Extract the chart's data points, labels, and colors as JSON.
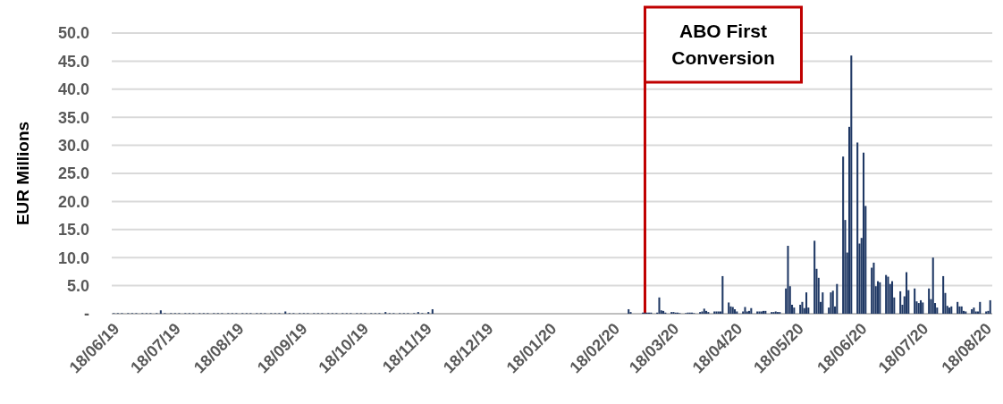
{
  "chart_data": {
    "type": "bar",
    "ylabel": "EUR Millions",
    "xlim": [
      "2019-06-16",
      "2020-08-20"
    ],
    "xticks": [
      {
        "value": "2019-06-18",
        "label": "18/06/19"
      },
      {
        "value": "2019-07-18",
        "label": "18/07/19"
      },
      {
        "value": "2019-08-18",
        "label": "18/08/19"
      },
      {
        "value": "2019-09-18",
        "label": "18/09/19"
      },
      {
        "value": "2019-10-18",
        "label": "18/10/19"
      },
      {
        "value": "2019-11-18",
        "label": "18/11/19"
      },
      {
        "value": "2019-12-18",
        "label": "18/12/19"
      },
      {
        "value": "2020-01-18",
        "label": "18/01/20"
      },
      {
        "value": "2020-02-18",
        "label": "18/02/20"
      },
      {
        "value": "2020-03-18",
        "label": "18/03/20"
      },
      {
        "value": "2020-04-18",
        "label": "18/04/20"
      },
      {
        "value": "2020-05-18",
        "label": "18/05/20"
      },
      {
        "value": "2020-06-18",
        "label": "18/06/20"
      },
      {
        "value": "2020-07-18",
        "label": "18/07/20"
      },
      {
        "value": "2020-08-18",
        "label": "18/08/20"
      }
    ],
    "ylim": [
      0,
      50
    ],
    "yticks": [
      {
        "value": 0,
        "label": "-"
      },
      {
        "value": 5,
        "label": "5.0"
      },
      {
        "value": 10,
        "label": "10.0"
      },
      {
        "value": 15,
        "label": "15.0"
      },
      {
        "value": 20,
        "label": "20.0"
      },
      {
        "value": 25,
        "label": "25.0"
      },
      {
        "value": 30,
        "label": "30.0"
      },
      {
        "value": 35,
        "label": "35.0"
      },
      {
        "value": 40,
        "label": "40.0"
      },
      {
        "value": 45,
        "label": "45.0"
      },
      {
        "value": 50,
        "label": "50.0"
      }
    ],
    "grid": "y",
    "ref_lines": [
      {
        "axis": "x",
        "value": "2020-03-03",
        "label": "ABO First Conversion",
        "color": "#c00000"
      }
    ],
    "series": [
      {
        "color": "#1f3864",
        "x": [
          "2019-06-17",
          "2019-06-19",
          "2019-06-21",
          "2019-06-24",
          "2019-06-26",
          "2019-06-28",
          "2019-07-01",
          "2019-07-03",
          "2019-07-05",
          "2019-07-08",
          "2019-07-10",
          "2019-07-12",
          "2019-07-15",
          "2019-07-17",
          "2019-07-19",
          "2019-07-22",
          "2019-07-24",
          "2019-07-26",
          "2019-07-29",
          "2019-07-31",
          "2019-08-02",
          "2019-08-05",
          "2019-08-07",
          "2019-08-09",
          "2019-08-12",
          "2019-08-14",
          "2019-08-16",
          "2019-08-19",
          "2019-08-21",
          "2019-08-23",
          "2019-08-26",
          "2019-08-28",
          "2019-08-30",
          "2019-09-02",
          "2019-09-04",
          "2019-09-06",
          "2019-09-09",
          "2019-09-11",
          "2019-09-13",
          "2019-09-16",
          "2019-09-18",
          "2019-09-20",
          "2019-09-23",
          "2019-09-25",
          "2019-09-27",
          "2019-09-30",
          "2019-10-02",
          "2019-10-04",
          "2019-10-07",
          "2019-10-09",
          "2019-10-11",
          "2019-10-14",
          "2019-10-16",
          "2019-10-18",
          "2019-10-21",
          "2019-10-23",
          "2019-10-25",
          "2019-10-28",
          "2019-10-30",
          "2019-11-01",
          "2019-11-04",
          "2019-11-06",
          "2019-11-08",
          "2019-11-11",
          "2019-11-13",
          "2019-11-15",
          "2019-11-18",
          "2019-11-20",
          "2020-02-24",
          "2020-02-25",
          "2020-03-02",
          "2020-03-03",
          "2020-03-04",
          "2020-03-05",
          "2020-03-06",
          "2020-03-09",
          "2020-03-10",
          "2020-03-11",
          "2020-03-12",
          "2020-03-13",
          "2020-03-16",
          "2020-03-17",
          "2020-03-18",
          "2020-03-19",
          "2020-03-20",
          "2020-03-23",
          "2020-03-24",
          "2020-03-25",
          "2020-03-26",
          "2020-03-27",
          "2020-03-30",
          "2020-03-31",
          "2020-04-01",
          "2020-04-02",
          "2020-04-03",
          "2020-04-06",
          "2020-04-07",
          "2020-04-08",
          "2020-04-09",
          "2020-04-10",
          "2020-04-13",
          "2020-04-14",
          "2020-04-15",
          "2020-04-16",
          "2020-04-17",
          "2020-04-20",
          "2020-04-21",
          "2020-04-22",
          "2020-04-23",
          "2020-04-24",
          "2020-04-27",
          "2020-04-28",
          "2020-04-29",
          "2020-04-30",
          "2020-05-01",
          "2020-05-04",
          "2020-05-05",
          "2020-05-06",
          "2020-05-07",
          "2020-05-08",
          "2020-05-11",
          "2020-05-12",
          "2020-05-13",
          "2020-05-14",
          "2020-05-15",
          "2020-05-18",
          "2020-05-19",
          "2020-05-20",
          "2020-05-21",
          "2020-05-22",
          "2020-05-25",
          "2020-05-26",
          "2020-05-27",
          "2020-05-28",
          "2020-05-29",
          "2020-06-01",
          "2020-06-02",
          "2020-06-03",
          "2020-06-04",
          "2020-06-05",
          "2020-06-08",
          "2020-06-09",
          "2020-06-10",
          "2020-06-11",
          "2020-06-12",
          "2020-06-15",
          "2020-06-16",
          "2020-06-17",
          "2020-06-18",
          "2020-06-19",
          "2020-06-22",
          "2020-06-23",
          "2020-06-24",
          "2020-06-25",
          "2020-06-26",
          "2020-06-29",
          "2020-06-30",
          "2020-07-01",
          "2020-07-02",
          "2020-07-03",
          "2020-07-06",
          "2020-07-07",
          "2020-07-08",
          "2020-07-09",
          "2020-07-10",
          "2020-07-13",
          "2020-07-14",
          "2020-07-15",
          "2020-07-16",
          "2020-07-17",
          "2020-07-20",
          "2020-07-21",
          "2020-07-22",
          "2020-07-23",
          "2020-07-24",
          "2020-07-27",
          "2020-07-28",
          "2020-07-29",
          "2020-07-30",
          "2020-07-31",
          "2020-08-03",
          "2020-08-04",
          "2020-08-05",
          "2020-08-06",
          "2020-08-07",
          "2020-08-10",
          "2020-08-11",
          "2020-08-12",
          "2020-08-13",
          "2020-08-14",
          "2020-08-17",
          "2020-08-18",
          "2020-08-19"
        ],
        "values": [
          0.1,
          0.1,
          0.1,
          0.1,
          0.1,
          0.1,
          0.1,
          0.1,
          0.1,
          0.1,
          0.6,
          0.1,
          0.1,
          0.1,
          0.1,
          0.1,
          0.1,
          0.1,
          0.1,
          0.1,
          0.1,
          0.1,
          0.1,
          0.1,
          0.1,
          0.1,
          0.1,
          0.1,
          0.1,
          0.1,
          0.1,
          0.1,
          0.1,
          0.1,
          0.1,
          0.1,
          0.4,
          0.1,
          0.1,
          0.1,
          0.1,
          0.1,
          0.1,
          0.1,
          0.1,
          0.1,
          0.1,
          0.1,
          0.1,
          0.1,
          0.1,
          0.1,
          0.1,
          0.1,
          0.1,
          0.1,
          0.1,
          0.3,
          0.1,
          0.1,
          0.1,
          0.1,
          0.1,
          0.1,
          0.3,
          0.1,
          0.3,
          0.8,
          0.8,
          0.3,
          0.2,
          0.2,
          0.2,
          0.2,
          0.2,
          0.2,
          2.9,
          0.6,
          0.5,
          0.2,
          0.3,
          0.3,
          0.2,
          0.2,
          0.1,
          0.1,
          0.2,
          0.2,
          0.2,
          0.1,
          0.3,
          0.4,
          0.9,
          0.5,
          0.3,
          0.4,
          0.4,
          0.4,
          0.4,
          6.7,
          2.0,
          1.3,
          1.2,
          0.8,
          0.4,
          0.4,
          1.2,
          0.4,
          0.5,
          1.0,
          0.4,
          0.4,
          0.4,
          0.5,
          0.5,
          0.3,
          0.3,
          0.4,
          0.3,
          0.3,
          4.5,
          12.1,
          4.9,
          1.6,
          1.1,
          1.6,
          2.1,
          1.0,
          3.8,
          1.1,
          13.0,
          8.0,
          6.4,
          2.1,
          3.8,
          1.1,
          3.8,
          4.1,
          1.3,
          5.3,
          28.0,
          16.7,
          10.9,
          33.3,
          46.0,
          30.5,
          12.5,
          13.5,
          28.7,
          19.2,
          8.2,
          9.1,
          4.9,
          5.8,
          5.6,
          6.9,
          6.6,
          5.3,
          5.8,
          2.9,
          4.0,
          1.6,
          3.1,
          7.4,
          4.2,
          4.5,
          2.2,
          1.9,
          2.4,
          2.0,
          4.5,
          2.6,
          10.0,
          1.9,
          1.1,
          6.7,
          3.7,
          1.4,
          1.1,
          1.3,
          2.1,
          1.3,
          1.3,
          0.5,
          0.4,
          0.8,
          1.1,
          0.4,
          0.4,
          2.1,
          0.4,
          0.5,
          2.4
        ]
      }
    ]
  }
}
